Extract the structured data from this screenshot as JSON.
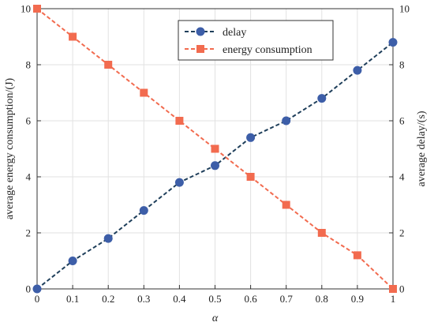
{
  "chart_data": {
    "type": "line",
    "title": "",
    "xlabel": "α",
    "ylabel_left": "average energy consumption/(J)",
    "ylabel_right": "average delay/(s)",
    "xlim": [
      0,
      1
    ],
    "ylim_left": [
      0,
      10
    ],
    "ylim_right": [
      0,
      10
    ],
    "x_ticks": [
      0,
      0.1,
      0.2,
      0.3,
      0.4,
      0.5,
      0.6,
      0.7,
      0.8,
      0.9,
      1
    ],
    "y_ticks": [
      0,
      2,
      4,
      6,
      8,
      10
    ],
    "grid": true,
    "legend_position": "top-center",
    "x": [
      0,
      0.1,
      0.2,
      0.3,
      0.4,
      0.5,
      0.6,
      0.7,
      0.8,
      0.9,
      1
    ],
    "series": [
      {
        "name": "delay",
        "axis": "right",
        "marker": "circle",
        "line_style": "dashed",
        "color": "#1f3f5b",
        "marker_color": "#3d5ea8",
        "values": [
          0,
          1.0,
          1.8,
          2.8,
          3.8,
          4.4,
          5.4,
          6.0,
          6.8,
          7.8,
          8.8
        ]
      },
      {
        "name": "energy consumption",
        "axis": "left",
        "marker": "square",
        "line_style": "dashed",
        "color": "#f26b4f",
        "marker_color": "#f26b4f",
        "values": [
          10,
          9,
          8,
          7,
          6,
          5,
          4,
          3,
          2,
          1.2,
          0
        ]
      }
    ]
  }
}
